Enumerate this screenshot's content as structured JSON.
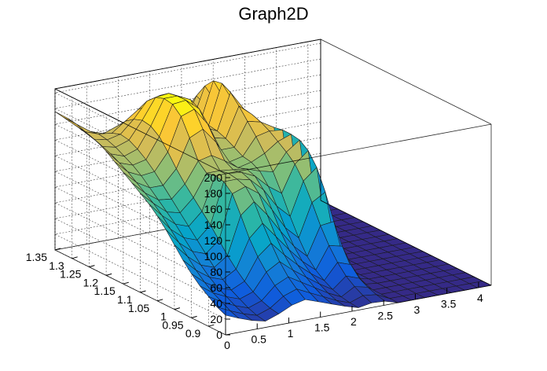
{
  "chart_data": {
    "type": "surface",
    "title": "Graph2D",
    "xlabel": "",
    "ylabel": "",
    "zlabel": "",
    "xlim": [
      0,
      4.2
    ],
    "ylim": [
      0.85,
      1.35
    ],
    "zlim": [
      0,
      205
    ],
    "x_ticks": [
      "0",
      "0.5",
      "1",
      "1.5",
      "2",
      "2.5",
      "3",
      "3.5",
      "4"
    ],
    "y_ticks": [
      "1.35",
      "1.3",
      "1.25",
      "1.2",
      "1.15",
      "1.1",
      "1.05",
      "1",
      "0.95",
      "0.9"
    ],
    "z_ticks": [
      "0",
      "20",
      "40",
      "60",
      "80",
      "100",
      "120",
      "140",
      "160",
      "180",
      "200"
    ],
    "x": [
      0,
      0.21,
      0.42,
      0.63,
      0.84,
      1.05,
      1.26,
      1.47,
      1.68,
      1.89,
      2.1,
      2.31,
      2.52,
      2.73,
      2.94,
      3.15,
      3.36,
      3.57,
      3.78,
      3.99,
      4.2
    ],
    "y": [
      0.85,
      0.875,
      0.9,
      0.925,
      0.95,
      0.975,
      1.0,
      1.025,
      1.05,
      1.075,
      1.1,
      1.125,
      1.15,
      1.175,
      1.2,
      1.225,
      1.25,
      1.275,
      1.3,
      1.325,
      1.35
    ],
    "z": [
      [
        25,
        18,
        12,
        8,
        14,
        22,
        26,
        20,
        14,
        8,
        3,
        6,
        5,
        0,
        0,
        0,
        0,
        0,
        0,
        0,
        0
      ],
      [
        30,
        22,
        15,
        10,
        16,
        28,
        34,
        26,
        18,
        10,
        4,
        10,
        8,
        0,
        0,
        0,
        0,
        0,
        0,
        0,
        0
      ],
      [
        38,
        28,
        20,
        14,
        20,
        36,
        44,
        34,
        24,
        14,
        6,
        16,
        12,
        0,
        0,
        0,
        0,
        0,
        0,
        0,
        0
      ],
      [
        46,
        34,
        26,
        20,
        26,
        48,
        58,
        44,
        32,
        20,
        10,
        24,
        18,
        0,
        0,
        0,
        0,
        0,
        0,
        0,
        0
      ],
      [
        56,
        42,
        32,
        26,
        34,
        62,
        76,
        58,
        42,
        28,
        16,
        36,
        30,
        2,
        0,
        0,
        0,
        0,
        0,
        0,
        0
      ],
      [
        68,
        52,
        40,
        34,
        44,
        80,
        96,
        76,
        56,
        38,
        24,
        52,
        48,
        4,
        0,
        0,
        0,
        0,
        0,
        0,
        0
      ],
      [
        82,
        64,
        50,
        44,
        56,
        104,
        118,
        98,
        74,
        52,
        36,
        72,
        74,
        8,
        0,
        0,
        0,
        0,
        0,
        0,
        0
      ],
      [
        96,
        76,
        62,
        56,
        70,
        126,
        132,
        120,
        96,
        70,
        54,
        96,
        106,
        12,
        0,
        0,
        0,
        0,
        0,
        0,
        0
      ],
      [
        108,
        88,
        74,
        68,
        84,
        136,
        136,
        132,
        116,
        92,
        76,
        118,
        132,
        16,
        0,
        0,
        0,
        0,
        0,
        0,
        0
      ],
      [
        118,
        100,
        86,
        80,
        96,
        138,
        138,
        136,
        128,
        112,
        100,
        134,
        148,
        22,
        0,
        0,
        0,
        0,
        0,
        0,
        0
      ],
      [
        126,
        110,
        96,
        92,
        108,
        136,
        136,
        134,
        132,
        126,
        122,
        144,
        156,
        28,
        0,
        0,
        0,
        0,
        0,
        0,
        0
      ],
      [
        134,
        118,
        106,
        104,
        120,
        146,
        150,
        140,
        128,
        132,
        140,
        152,
        158,
        32,
        0,
        0,
        0,
        0,
        0,
        0,
        0
      ],
      [
        142,
        126,
        116,
        116,
        134,
        170,
        178,
        158,
        130,
        134,
        156,
        160,
        158,
        34,
        0,
        0,
        0,
        0,
        0,
        0,
        0
      ],
      [
        150,
        134,
        126,
        128,
        150,
        192,
        198,
        176,
        140,
        140,
        170,
        166,
        156,
        36,
        0,
        0,
        0,
        0,
        0,
        0,
        0
      ],
      [
        158,
        140,
        134,
        138,
        164,
        202,
        204,
        190,
        150,
        146,
        184,
        170,
        152,
        36,
        0,
        0,
        0,
        0,
        0,
        0,
        0
      ],
      [
        164,
        146,
        140,
        146,
        172,
        204,
        204,
        196,
        158,
        150,
        196,
        172,
        148,
        34,
        0,
        0,
        0,
        0,
        0,
        0,
        0
      ],
      [
        168,
        150,
        146,
        152,
        174,
        200,
        202,
        194,
        162,
        152,
        202,
        172,
        144,
        32,
        0,
        0,
        0,
        0,
        0,
        0,
        0
      ],
      [
        170,
        154,
        150,
        154,
        170,
        190,
        194,
        184,
        160,
        150,
        200,
        168,
        140,
        30,
        0,
        0,
        0,
        0,
        0,
        0,
        0
      ],
      [
        172,
        158,
        152,
        150,
        162,
        174,
        178,
        168,
        152,
        144,
        188,
        160,
        134,
        28,
        0,
        0,
        0,
        0,
        0,
        0,
        0
      ],
      [
        174,
        162,
        150,
        144,
        150,
        156,
        158,
        150,
        140,
        134,
        170,
        150,
        126,
        26,
        0,
        0,
        0,
        0,
        0,
        0,
        0
      ],
      [
        176,
        164,
        146,
        136,
        138,
        140,
        140,
        136,
        128,
        124,
        150,
        138,
        118,
        24,
        0,
        0,
        0,
        0,
        0,
        0,
        0
      ]
    ],
    "colormap": [
      "#352a87",
      "#0f5cdd",
      "#1481d6",
      "#06a4ca",
      "#2eb7a4",
      "#87bf77",
      "#d1bb59",
      "#fec832",
      "#f9fb0e"
    ],
    "grid": true,
    "frame_color": "#000000",
    "background": "#ffffff"
  }
}
